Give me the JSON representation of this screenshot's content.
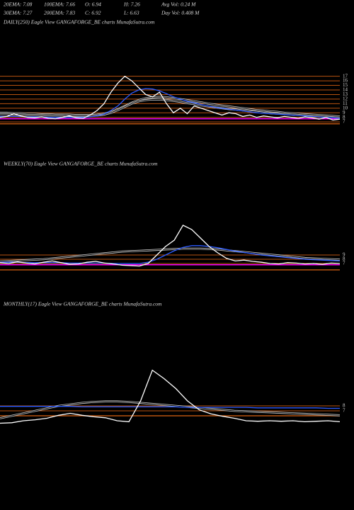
{
  "header": [
    [
      "20EMA: 7.08",
      "100EMA: 7.66",
      "O: 6.94",
      "H: 7.26",
      "Avg Vol: 0.24  M"
    ],
    [
      "30EMA: 7.27",
      "200EMA: 7.83",
      "C: 6.92",
      "L: 6.63",
      "Day Vol: 0.408  M"
    ]
  ],
  "chart_data": [
    {
      "type": "line",
      "title": "DAILY(250) Eagle   View   GANGAFORGE_BE charts MunafaSutra.com",
      "ylim": [
        5,
        18.5
      ],
      "yticks": [
        17,
        16,
        15,
        14,
        13,
        12,
        11,
        10,
        9,
        8,
        7
      ],
      "grid": true,
      "grid_color": "#b8520f",
      "hlines": [
        {
          "value": 7.7,
          "color": "#ff00ff"
        },
        {
          "value": 6.6,
          "color": "#b8520f"
        }
      ],
      "series": [
        {
          "color": "#cfcfcf",
          "style": "double",
          "values": [
            9,
            9,
            8.9,
            8.9,
            8.8,
            8.8,
            8.7,
            8.7,
            8.6,
            8.6,
            8.6,
            8.5,
            8.5,
            8.5,
            8.6,
            8.8,
            9.2,
            9.8,
            10.5,
            11.2,
            11.8,
            12.2,
            12.4,
            12.5,
            12.4,
            12.2,
            12,
            11.8,
            11.5,
            11.3,
            11,
            10.8,
            10.6,
            10.4,
            10.2,
            10,
            9.8,
            9.6,
            9.5,
            9.3,
            9.2,
            9,
            8.9,
            8.8,
            8.7,
            8.6,
            8.5,
            8.4,
            8.3,
            8.2
          ]
        },
        {
          "color": "#cfcfcf",
          "style": "double",
          "values": [
            8.7,
            8.7,
            8.6,
            8.6,
            8.5,
            8.5,
            8.5,
            8.4,
            8.4,
            8.4,
            8.3,
            8.3,
            8.3,
            8.3,
            8.4,
            8.6,
            9,
            9.6,
            10.3,
            11,
            11.5,
            11.8,
            11.9,
            11.9,
            11.8,
            11.6,
            11.4,
            11.1,
            10.9,
            10.6,
            10.4,
            10.2,
            10,
            9.8,
            9.7,
            9.5,
            9.3,
            9.2,
            9,
            8.9,
            8.8,
            8.7,
            8.6,
            8.5,
            8.4,
            8.3,
            8.2,
            8.1,
            8,
            7.9
          ]
        },
        {
          "color": "#2d5bff",
          "style": "single",
          "values": [
            8.2,
            8.2,
            8.2,
            8.2,
            8.1,
            8.1,
            8.1,
            8,
            8,
            8,
            8,
            8,
            8,
            8.1,
            8.3,
            8.7,
            9.5,
            10.5,
            12,
            13.3,
            14,
            14.3,
            14.2,
            13.8,
            13.2,
            12.5,
            12,
            11.5,
            11.2,
            10.8,
            10.5,
            10.2,
            10,
            9.8,
            9.6,
            9.4,
            9.2,
            9,
            8.9,
            8.8,
            8.7,
            8.6,
            8.5,
            8.4,
            8.3,
            8.2,
            8.1,
            8,
            7.9,
            7.8
          ]
        },
        {
          "color": "#ffffff",
          "style": "single",
          "values": [
            8,
            8.2,
            8.8,
            8.3,
            8,
            7.9,
            8.1,
            7.8,
            7.7,
            8,
            8.3,
            7.9,
            7.8,
            8.5,
            9.5,
            11,
            13.5,
            15.5,
            17,
            16,
            14.5,
            13,
            12.5,
            13.5,
            11,
            9,
            10,
            8.8,
            10.5,
            10,
            9.5,
            9,
            8.5,
            9,
            8.8,
            8.2,
            8.5,
            8,
            8.3,
            8.1,
            7.9,
            8.2,
            8,
            7.8,
            8.1,
            7.9,
            7.6,
            8,
            7.4,
            7.6
          ]
        }
      ]
    },
    {
      "type": "line",
      "title": "WEEKLY(70) Eagle   View   GANGAFORGE_BE charts MunafaSutra.com",
      "ylim": [
        3,
        17
      ],
      "yticks": [
        9,
        8,
        7
      ],
      "grid": true,
      "grid_color": "#b8520f",
      "hlines": [
        {
          "value": 6.7,
          "color": "#ff00ff"
        },
        {
          "value": 5.5,
          "color": "#b8520f"
        }
      ],
      "series": [
        {
          "color": "#cfcfcf",
          "style": "double",
          "values": [
            7.5,
            7.6,
            7.7,
            7.8,
            7.9,
            8,
            8.2,
            8.4,
            8.6,
            8.8,
            9,
            9.2,
            9.4,
            9.6,
            9.8,
            9.9,
            10,
            10.1,
            10.2,
            10.3,
            10.4,
            10.5,
            10.5,
            10.5,
            10.4,
            10.3,
            10.1,
            9.9,
            9.7,
            9.5,
            9.3,
            9.1,
            8.9,
            8.7,
            8.5,
            8.3,
            8.2,
            8.1,
            8,
            7.9
          ]
        },
        {
          "color": "#2d5bff",
          "style": "single",
          "values": [
            7.3,
            7.3,
            7.3,
            7.2,
            7.2,
            7.2,
            7.2,
            7.2,
            7.1,
            7.1,
            7.1,
            7.1,
            7.1,
            7,
            7,
            7,
            7,
            7.3,
            8,
            9,
            10,
            10.8,
            11.2,
            11.2,
            11,
            10.7,
            10.3,
            9.9,
            9.6,
            9.3,
            9,
            8.8,
            8.6,
            8.4,
            8.2,
            8,
            7.9,
            7.8,
            7.7,
            7.6
          ]
        },
        {
          "color": "#ffffff",
          "style": "single",
          "values": [
            7.2,
            7,
            7.4,
            7.1,
            6.9,
            7.3,
            7.6,
            7.2,
            6.8,
            6.9,
            7.3,
            7.5,
            7.1,
            6.9,
            6.6,
            6.5,
            6.4,
            7,
            9,
            11,
            12.5,
            16,
            15,
            13,
            11,
            9.5,
            8.2,
            7.6,
            7.8,
            7.5,
            7.3,
            7,
            6.9,
            7.2,
            7.1,
            6.9,
            7,
            6.8,
            7.1,
            7
          ]
        }
      ]
    },
    {
      "type": "line",
      "title": "MONTHLY(17) Eagle   View   GANGAFORGE_BE charts MunafaSutra.com",
      "ylim": [
        4,
        16
      ],
      "yticks": [
        8,
        7
      ],
      "grid": true,
      "grid_color": "#b8520f",
      "hlines": [
        {
          "value": 6,
          "color": "#b8520f"
        }
      ],
      "series": [
        {
          "color": "#cfcfcf",
          "style": "double",
          "values": [
            5.5,
            6,
            6.5,
            7,
            7.5,
            8,
            8.3,
            8.6,
            8.8,
            8.9,
            8.9,
            8.8,
            8.6,
            8.4,
            8.2,
            8,
            7.8,
            7.6,
            7.4,
            7.2,
            7,
            6.9,
            6.8,
            6.7,
            6.6,
            6.5,
            6.4,
            6.3,
            6.2,
            6.1
          ]
        },
        {
          "color": "#2d5bff",
          "style": "single",
          "values": [
            7.9,
            7.9,
            7.9,
            7.9,
            7.9,
            7.9,
            7.9,
            7.8,
            7.8,
            7.8,
            7.8,
            7.8,
            7.8,
            7.8,
            7.8,
            7.8,
            7.7,
            7.7,
            7.7,
            7.7,
            7.7,
            7.7,
            7.6,
            7.6,
            7.6,
            7.6,
            7.6,
            7.6,
            7.5,
            7.5
          ]
        },
        {
          "color": "#ffffff",
          "style": "single",
          "values": [
            4.5,
            4.6,
            5,
            5.2,
            5.5,
            6.1,
            6.5,
            6.1,
            5.8,
            5.6,
            5,
            4.8,
            9,
            15.2,
            13.5,
            11.5,
            9,
            7.2,
            6.4,
            5.9,
            5.5,
            5,
            4.9,
            5,
            4.9,
            5,
            4.8,
            4.9,
            5,
            4.8
          ]
        }
      ]
    }
  ]
}
